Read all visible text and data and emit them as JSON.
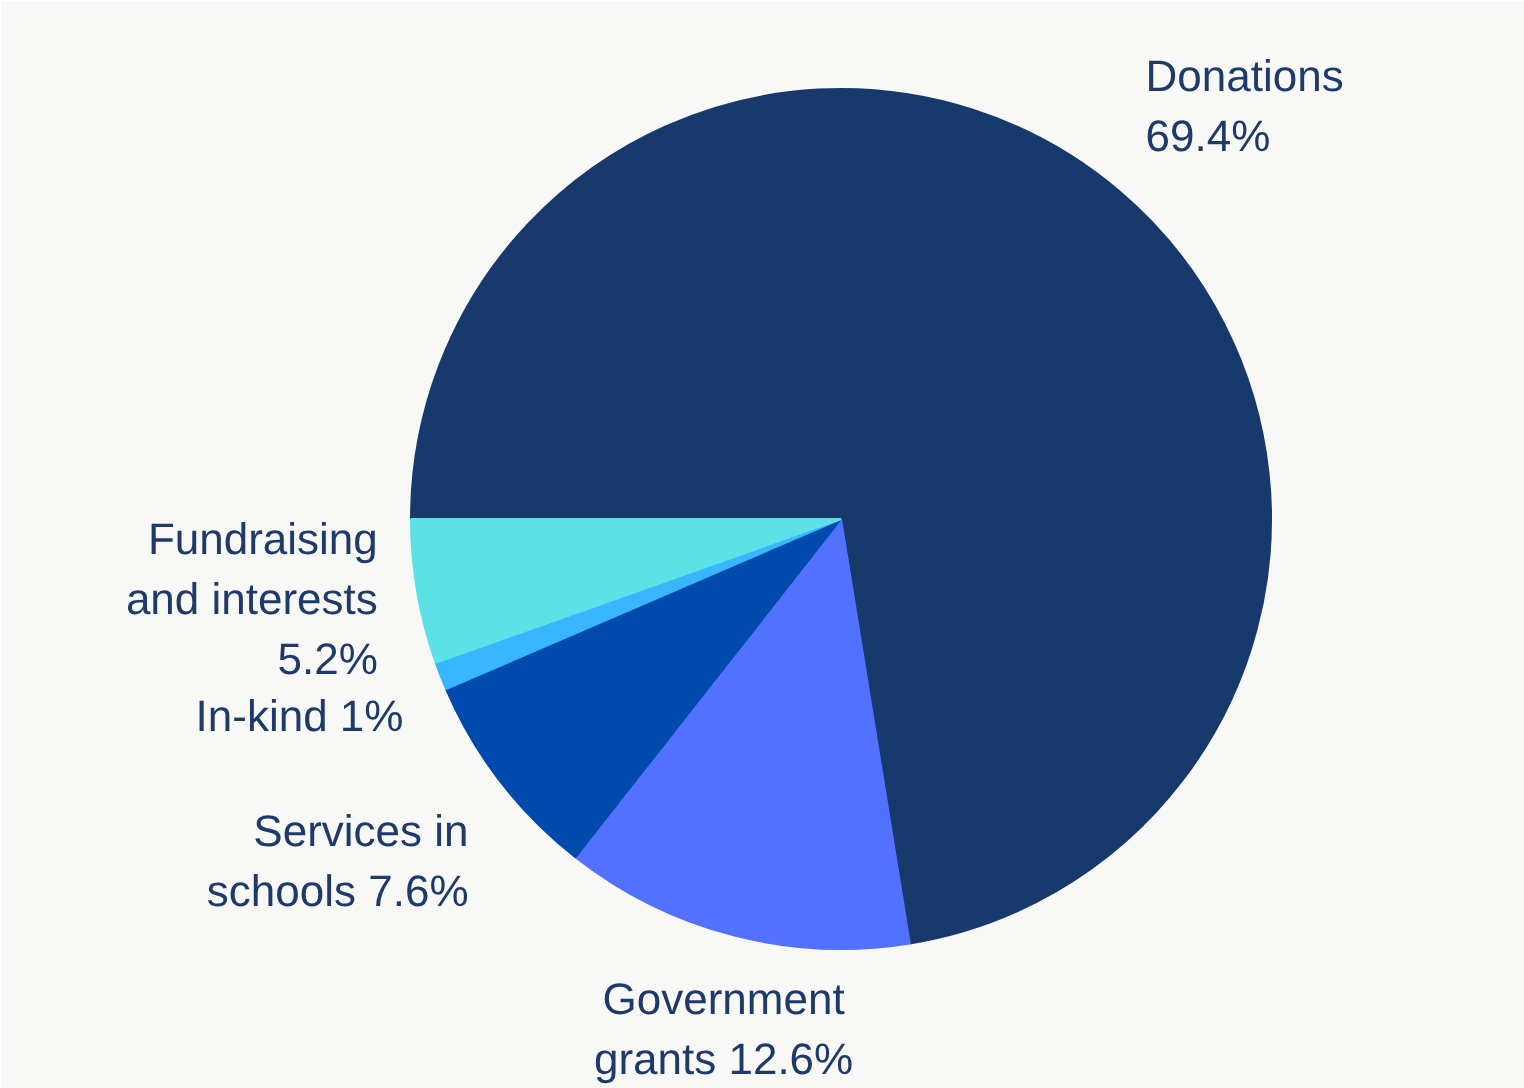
{
  "chart_data": {
    "type": "pie",
    "categories": [
      "Donations",
      "Government grants",
      "Services in schools",
      "In-kind",
      "Fundraising and interests"
    ],
    "values": [
      69.4,
      12.6,
      7.6,
      1,
      5.2
    ],
    "colors": [
      "#17396b",
      "#5271ff",
      "#004aad",
      "#38b6ff",
      "#5ce1e6"
    ],
    "value_labels": [
      "69.4%",
      "12.6%",
      "7.6%",
      "1%",
      "5.2%"
    ]
  }
}
